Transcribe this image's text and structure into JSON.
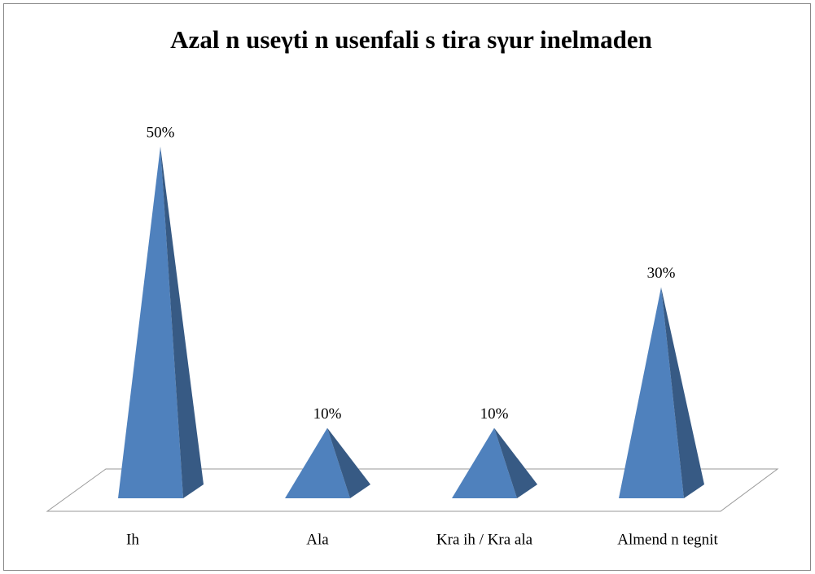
{
  "chart_data": {
    "type": "pyramid",
    "title": "Azal n useγti n usenfali s tira sγur inelmaden",
    "categories": [
      "Ih",
      "Ala",
      "Kra ih / Kra ala",
      "Almend n tegnit"
    ],
    "values": [
      50,
      10,
      10,
      30
    ],
    "value_labels": [
      "50%",
      "10%",
      "10%",
      "30%"
    ],
    "color": "#4f81bd"
  }
}
